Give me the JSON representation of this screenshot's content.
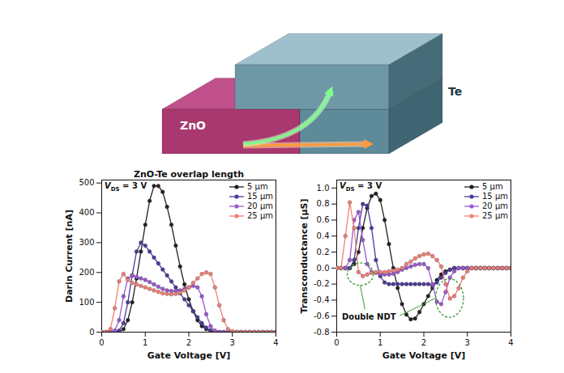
{
  "illustration": {
    "labels": [
      "ZnO",
      "Te"
    ]
  },
  "chart_data": [
    {
      "type": "line",
      "title": "ZnO-Te overlap length",
      "annotation": "VDS = 3 V",
      "annotation_subscript": "DS",
      "x_label": "Gate Voltage [V]",
      "y_label": "Darin Current [nA]",
      "marker": "circle",
      "legend": "top-right",
      "xlim": [
        0,
        4
      ],
      "xticks": [
        0,
        1,
        2,
        3,
        4
      ],
      "ylim": [
        0,
        510
      ],
      "yticks": [
        0,
        100,
        200,
        300,
        400,
        500
      ],
      "x": [
        0,
        0.1,
        0.2,
        0.3,
        0.4,
        0.5,
        0.6,
        0.7,
        0.8,
        0.9,
        1,
        1.1,
        1.2,
        1.3,
        1.4,
        1.5,
        1.6,
        1.7,
        1.8,
        1.9,
        2,
        2.1,
        2.2,
        2.3,
        2.4,
        2.5,
        2.6,
        2.7,
        2.8,
        2.9,
        3,
        3.1,
        3.2,
        3.3,
        3.4,
        3.5,
        3.6,
        3.7,
        3.8,
        3.9,
        4
      ],
      "series": [
        {
          "name": "5 µm",
          "color": "#222222",
          "values": [
            0,
            0,
            0,
            0,
            0,
            10,
            40,
            100,
            180,
            270,
            360,
            440,
            490,
            490,
            470,
            420,
            360,
            290,
            220,
            160,
            110,
            70,
            40,
            20,
            10,
            5,
            0,
            0,
            0,
            0,
            0,
            0,
            0,
            0,
            0,
            0,
            0,
            0,
            0,
            0,
            0
          ]
        },
        {
          "name": "15 µm",
          "color": "#4b3b9a",
          "values": [
            0,
            0,
            0,
            0,
            5,
            30,
            100,
            190,
            270,
            300,
            290,
            270,
            250,
            230,
            210,
            190,
            170,
            150,
            130,
            110,
            90,
            70,
            50,
            30,
            15,
            5,
            0,
            0,
            0,
            0,
            0,
            0,
            0,
            0,
            0,
            0,
            0,
            0,
            0,
            0,
            0
          ]
        },
        {
          "name": "20 µm",
          "color": "#9b59d0",
          "values": [
            0,
            0,
            0,
            5,
            40,
            120,
            180,
            190,
            185,
            180,
            175,
            168,
            160,
            152,
            145,
            140,
            138,
            138,
            140,
            145,
            150,
            155,
            150,
            120,
            60,
            20,
            5,
            0,
            0,
            0,
            0,
            0,
            0,
            0,
            0,
            0,
            0,
            0,
            0,
            0,
            0
          ]
        },
        {
          "name": "25 µm",
          "color": "#f07f78",
          "values": [
            0,
            0,
            10,
            80,
            170,
            195,
            175,
            165,
            160,
            155,
            150,
            145,
            140,
            135,
            130,
            128,
            127,
            128,
            132,
            140,
            150,
            165,
            180,
            195,
            200,
            195,
            150,
            90,
            40,
            10,
            3,
            0,
            0,
            0,
            0,
            0,
            0,
            0,
            0,
            0,
            0
          ]
        }
      ]
    },
    {
      "type": "line",
      "annotation": "VDS = 3 V",
      "annotation_subscript": "DS",
      "callout": "Double NDT",
      "x_label": "Gate Voltage [V]",
      "y_label": "Transconductance [µS]",
      "marker": "circle",
      "legend": "top-right",
      "xlim": [
        0,
        4
      ],
      "xticks": [
        0,
        1,
        2,
        3,
        4
      ],
      "ylim": [
        -0.8,
        1.1
      ],
      "yticks": [
        -0.8,
        -0.6,
        -0.4,
        -0.2,
        {
          "value": 0,
          "label": "0.0"
        },
        0.2,
        0.4,
        0.6,
        0.8,
        {
          "value": 1,
          "label": "1.0"
        }
      ],
      "x": [
        0,
        0.1,
        0.2,
        0.3,
        0.4,
        0.5,
        0.6,
        0.7,
        0.8,
        0.9,
        1,
        1.1,
        1.2,
        1.3,
        1.4,
        1.5,
        1.6,
        1.7,
        1.8,
        1.9,
        2,
        2.1,
        2.2,
        2.3,
        2.4,
        2.5,
        2.6,
        2.7,
        2.8,
        2.9,
        3,
        3.1,
        3.2,
        3.3,
        3.4,
        3.5,
        3.6,
        3.7,
        3.8,
        3.9,
        4
      ],
      "series": [
        {
          "name": "5 µm",
          "color": "#222222",
          "values": [
            0,
            0,
            0,
            0,
            0.05,
            0.2,
            0.5,
            0.75,
            0.9,
            0.93,
            0.85,
            0.6,
            0.3,
            0,
            -0.25,
            -0.45,
            -0.58,
            -0.64,
            -0.63,
            -0.55,
            -0.45,
            -0.35,
            -0.25,
            -0.15,
            -0.08,
            -0.04,
            -0.02,
            0,
            0,
            0,
            0,
            0,
            0,
            0,
            0,
            0,
            0,
            0,
            0,
            0,
            0
          ]
        },
        {
          "name": "15 µm",
          "color": "#4b3b9a",
          "values": [
            0,
            0,
            0,
            0,
            0.1,
            0.5,
            0.8,
            0.78,
            0.5,
            0.1,
            -0.1,
            -0.18,
            -0.2,
            -0.2,
            -0.2,
            -0.2,
            -0.2,
            -0.2,
            -0.2,
            -0.2,
            -0.2,
            -0.2,
            -0.22,
            -0.18,
            -0.12,
            -0.06,
            -0.02,
            0,
            0,
            0,
            0,
            0,
            0,
            0,
            0,
            0,
            0,
            0,
            0,
            0,
            0
          ]
        },
        {
          "name": "20 µm",
          "color": "#9b59d0",
          "values": [
            0,
            0,
            0,
            0.1,
            0.6,
            0.7,
            0.35,
            0.05,
            -0.05,
            -0.06,
            -0.07,
            -0.08,
            -0.08,
            -0.07,
            -0.05,
            -0.02,
            0,
            0.02,
            0.04,
            0.05,
            0.05,
            0,
            -0.2,
            -0.42,
            -0.45,
            -0.3,
            -0.12,
            -0.04,
            0,
            0,
            0,
            0,
            0,
            0,
            0,
            0,
            0,
            0,
            0,
            0,
            0
          ]
        },
        {
          "name": "25 µm",
          "color": "#f07f78",
          "values": [
            0,
            0,
            0.4,
            0.82,
            0.5,
            -0.05,
            -0.1,
            -0.08,
            -0.06,
            -0.05,
            -0.05,
            -0.05,
            -0.04,
            -0.03,
            -0.02,
            0,
            0.05,
            0.08,
            0.12,
            0.15,
            0.17,
            0.18,
            0.15,
            0.1,
            0.02,
            -0.2,
            -0.38,
            -0.35,
            -0.25,
            -0.12,
            -0.04,
            0,
            0,
            0,
            0,
            0,
            0,
            0,
            0,
            0,
            0
          ]
        }
      ]
    }
  ]
}
